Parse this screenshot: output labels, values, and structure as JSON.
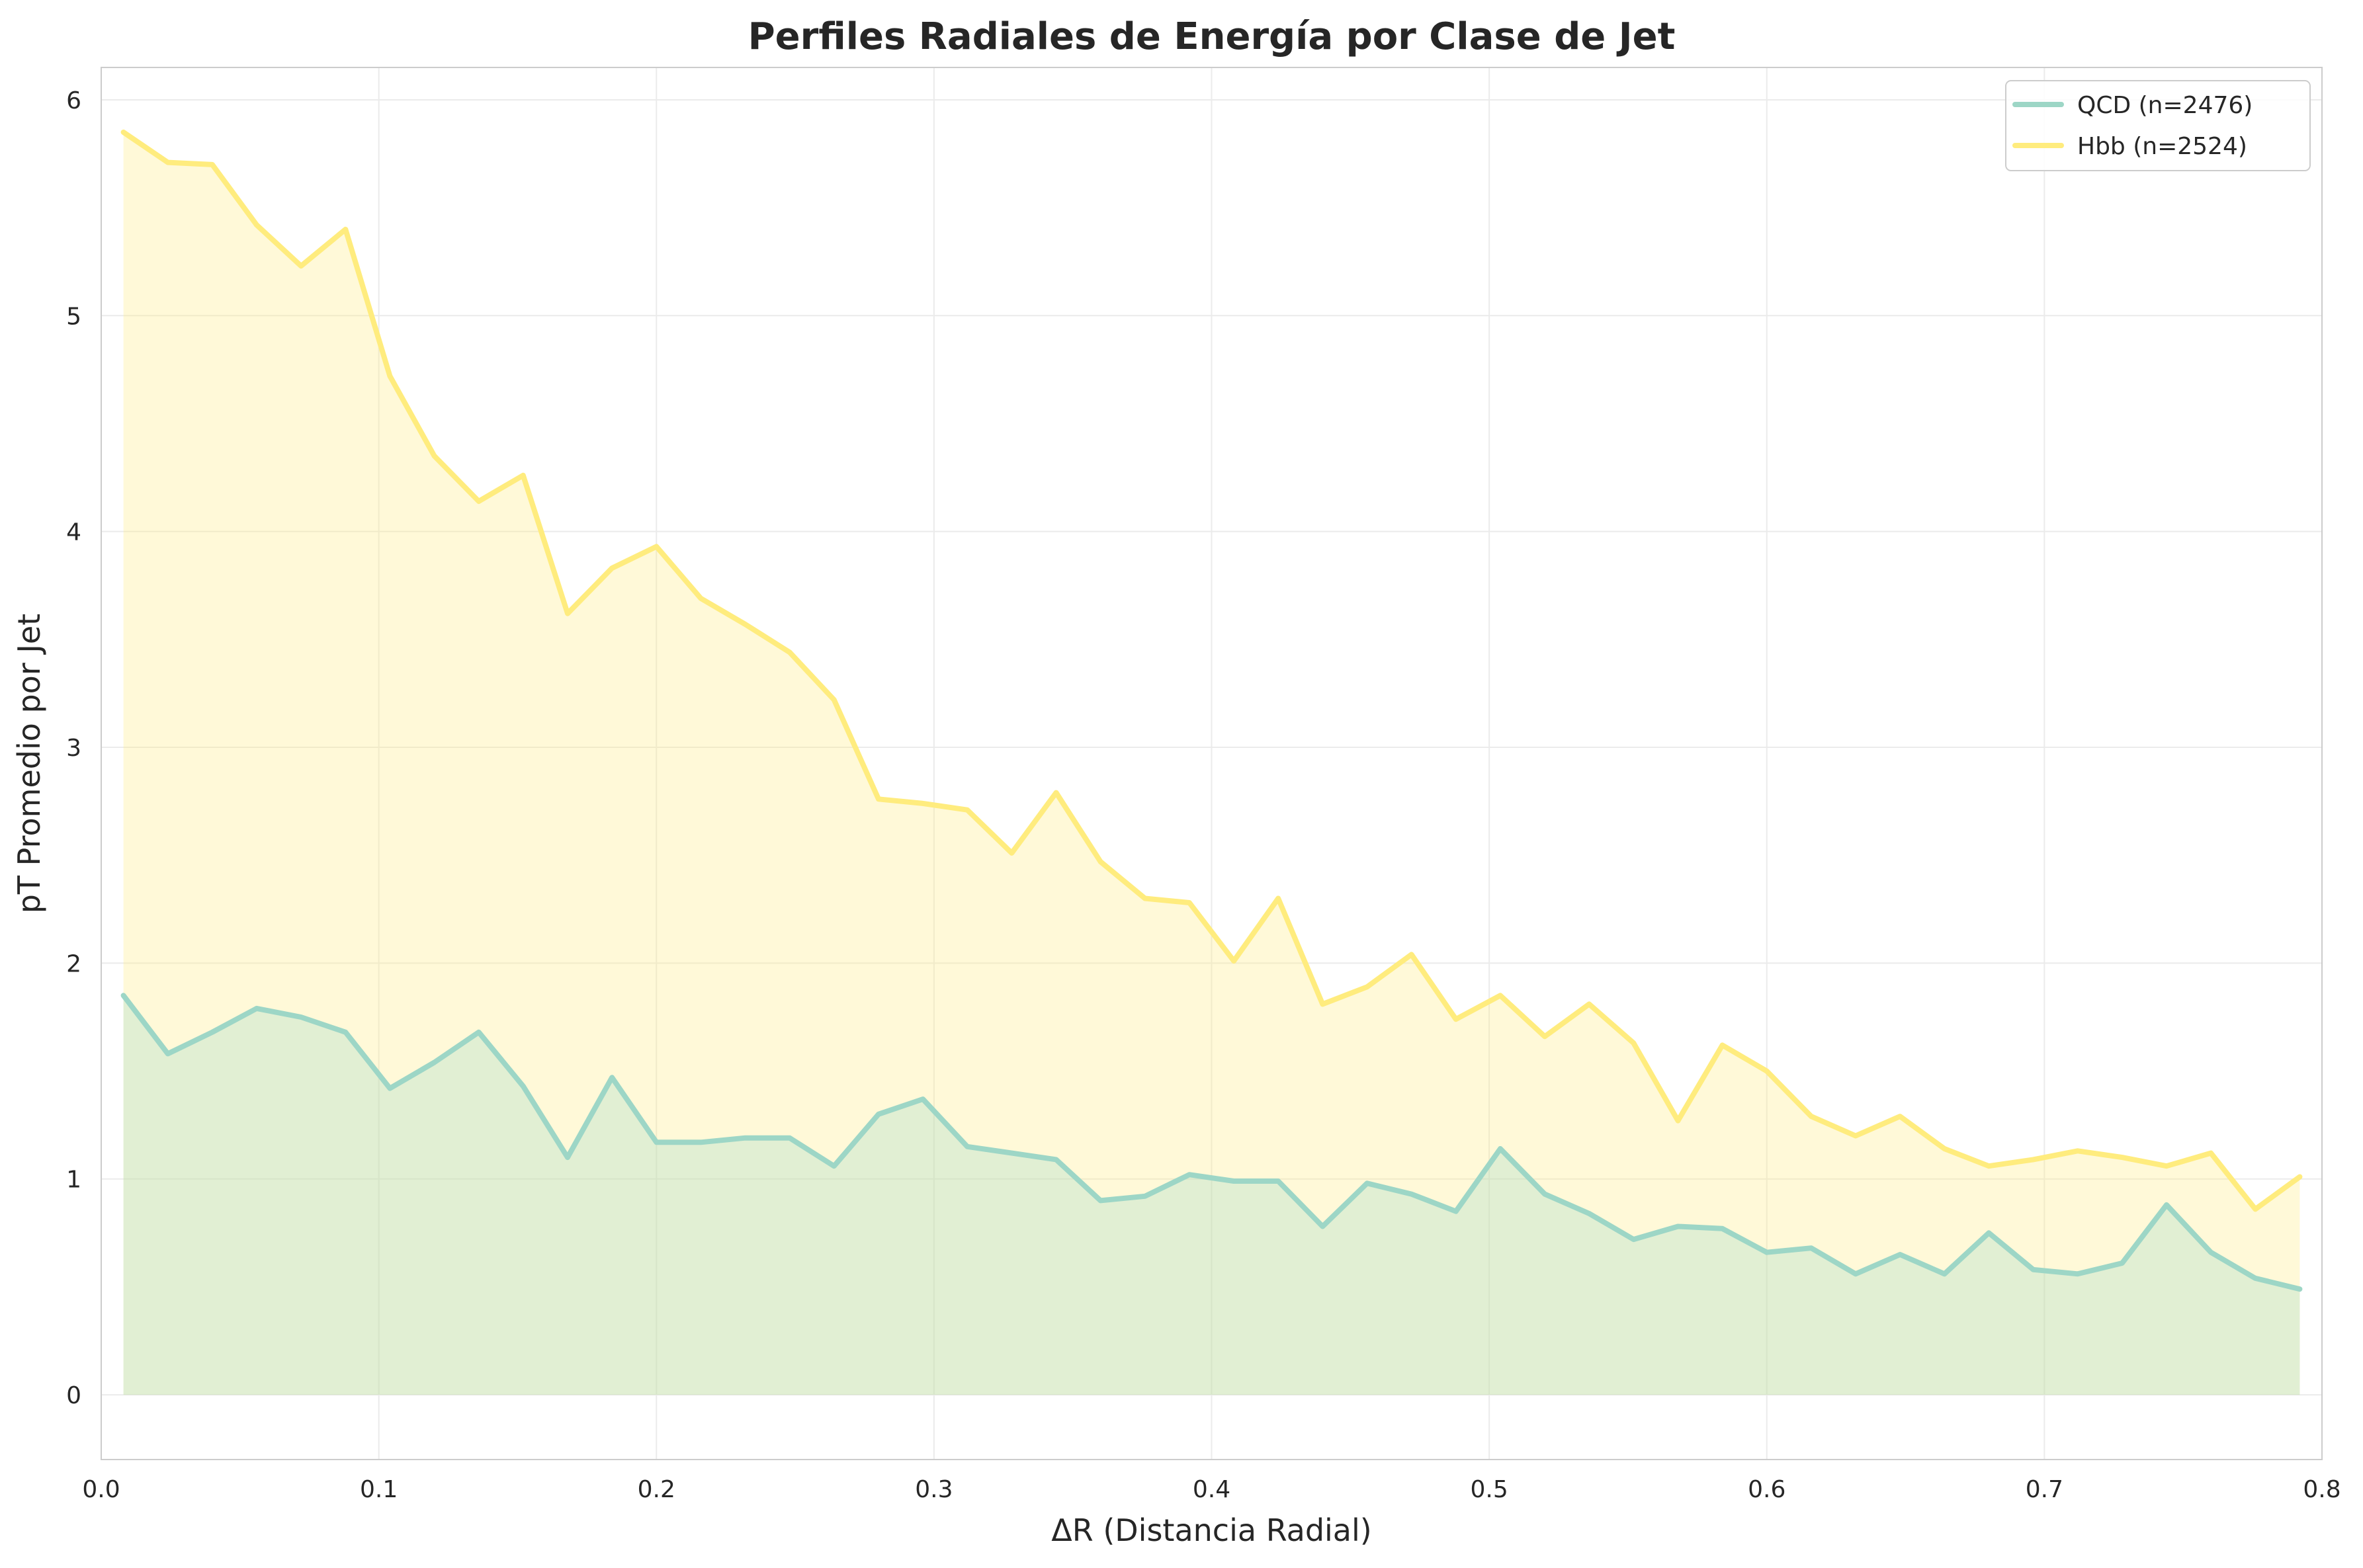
{
  "chart_data": {
    "type": "area",
    "title": "Perfiles Radiales de Energía por Clase de Jet",
    "xlabel": "ΔR (Distancia Radial)",
    "ylabel": "pT Promedio por Jet",
    "xlim": [
      0,
      0.8
    ],
    "ylim": [
      -0.3,
      6.15
    ],
    "xticks": [
      0,
      0.1,
      0.2,
      0.3,
      0.4,
      0.5,
      0.6,
      0.7,
      0.8
    ],
    "xtick_labels": [
      "0.0",
      "0.1",
      "0.2",
      "0.3",
      "0.4",
      "0.5",
      "0.6",
      "0.7",
      "0.8"
    ],
    "yticks": [
      0,
      1,
      2,
      3,
      4,
      5,
      6
    ],
    "ytick_labels": [
      "0",
      "1",
      "2",
      "3",
      "4",
      "5",
      "6"
    ],
    "grid": true,
    "legend_position": "top-right",
    "x": [
      0.008,
      0.024,
      0.04,
      0.056,
      0.072,
      0.088,
      0.104,
      0.12,
      0.136,
      0.152,
      0.168,
      0.184,
      0.2,
      0.216,
      0.232,
      0.248,
      0.264,
      0.28,
      0.296,
      0.312,
      0.328,
      0.344,
      0.36,
      0.376,
      0.392,
      0.408,
      0.424,
      0.44,
      0.456,
      0.472,
      0.488,
      0.504,
      0.52,
      0.536,
      0.552,
      0.568,
      0.584,
      0.6,
      0.616,
      0.632,
      0.648,
      0.664,
      0.68,
      0.696,
      0.712,
      0.728,
      0.744,
      0.76,
      0.776,
      0.792
    ],
    "series": [
      {
        "name": "QCD (n=2476)",
        "color": "#9dd6c6",
        "values": [
          1.85,
          1.58,
          1.68,
          1.79,
          1.75,
          1.68,
          1.42,
          1.54,
          1.68,
          1.43,
          1.1,
          1.47,
          1.17,
          1.17,
          1.19,
          1.19,
          1.06,
          1.3,
          1.37,
          1.15,
          1.12,
          1.09,
          0.9,
          0.92,
          1.02,
          0.99,
          0.99,
          0.78,
          0.98,
          0.93,
          0.85,
          1.14,
          0.93,
          0.84,
          0.72,
          0.78,
          0.77,
          0.66,
          0.68,
          0.56,
          0.65,
          0.56,
          0.75,
          0.58,
          0.56,
          0.61,
          0.88,
          0.66,
          0.54,
          0.49
        ]
      },
      {
        "name": "Hbb (n=2524)",
        "color": "#ffec7e",
        "values": [
          5.85,
          5.71,
          5.7,
          5.42,
          5.23,
          5.4,
          4.72,
          4.35,
          4.14,
          4.26,
          3.62,
          3.83,
          3.93,
          3.69,
          3.57,
          3.44,
          3.22,
          2.76,
          2.74,
          2.71,
          2.51,
          2.79,
          2.47,
          2.3,
          2.28,
          2.01,
          2.3,
          1.81,
          1.89,
          2.04,
          1.74,
          1.85,
          1.66,
          1.81,
          1.63,
          1.27,
          1.62,
          1.5,
          1.29,
          1.2,
          1.29,
          1.14,
          1.06,
          1.09,
          1.13,
          1.1,
          1.06,
          1.12,
          0.86,
          1.01
        ]
      }
    ]
  }
}
